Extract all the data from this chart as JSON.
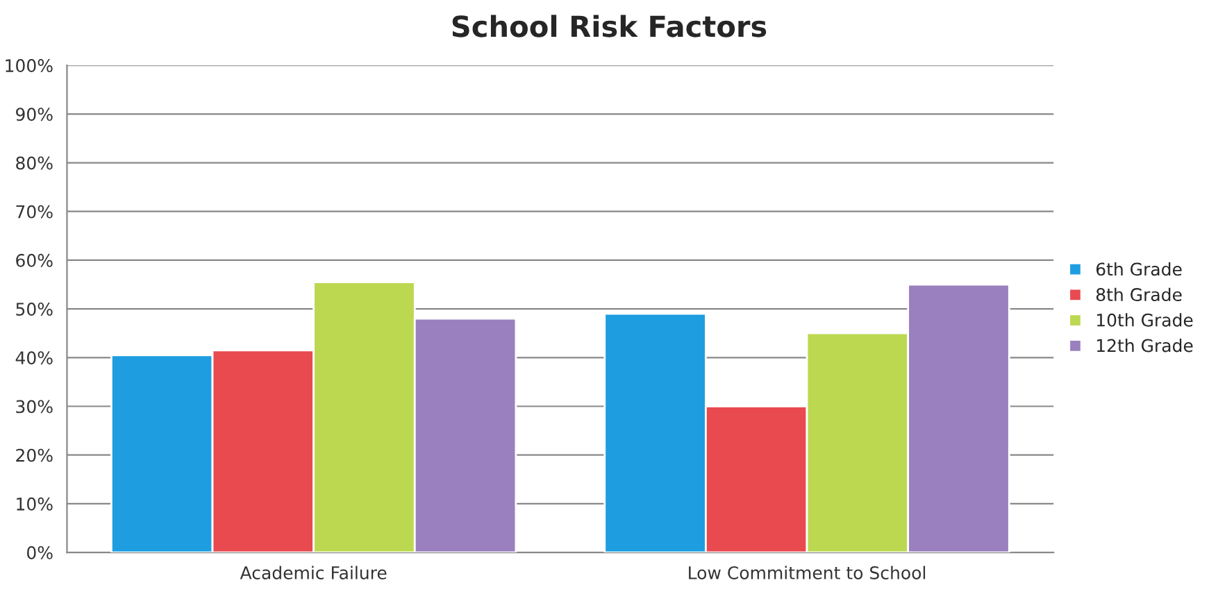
{
  "chart_data": {
    "type": "bar",
    "title": "School Risk Factors",
    "categories": [
      "Academic Failure",
      "Low Commitment to School"
    ],
    "series": [
      {
        "name": "6th Grade",
        "color": "#1e9ee0",
        "values": [
          40.5,
          49
        ]
      },
      {
        "name": "8th Grade",
        "color": "#e84a50",
        "values": [
          41.5,
          30
        ]
      },
      {
        "name": "10th Grade",
        "color": "#bcd850",
        "values": [
          55.5,
          45
        ]
      },
      {
        "name": "12th Grade",
        "color": "#9a80be",
        "values": [
          48,
          55
        ]
      }
    ],
    "ylim": [
      0,
      100
    ],
    "yticks": [
      {
        "value": 0,
        "label": "0%"
      },
      {
        "value": 10,
        "label": "10%"
      },
      {
        "value": 20,
        "label": "20%"
      },
      {
        "value": 30,
        "label": "30%"
      },
      {
        "value": 40,
        "label": "40%"
      },
      {
        "value": 50,
        "label": "50%"
      },
      {
        "value": 60,
        "label": "60%"
      },
      {
        "value": 70,
        "label": "70%"
      },
      {
        "value": 80,
        "label": "80%"
      },
      {
        "value": 90,
        "label": "90%"
      },
      {
        "value": 100,
        "label": "100%"
      }
    ],
    "grid": "y",
    "legend": "right"
  }
}
